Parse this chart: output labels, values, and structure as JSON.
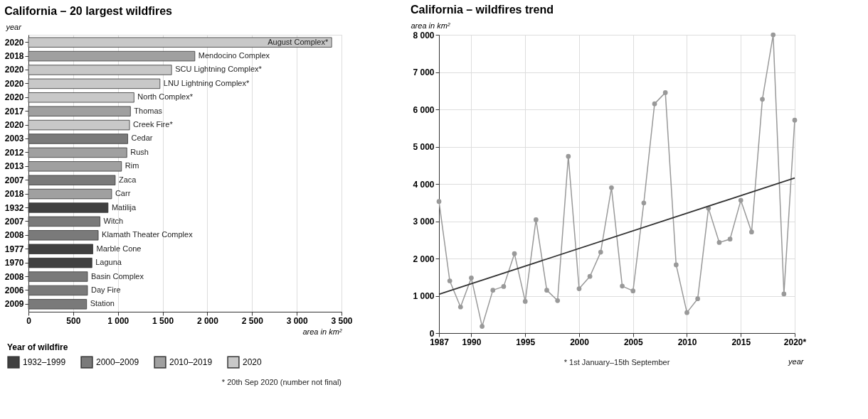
{
  "chart_data": [
    {
      "type": "bar",
      "orientation": "horizontal",
      "title": "California – 20 largest wildfires",
      "xlabel": "area in km²",
      "ylabel": "year",
      "legend_title": "Year of wildfire",
      "legend": "bottom",
      "grid": "x",
      "categories": [
        "2020",
        "2018",
        "2020",
        "2020",
        "2020",
        "2017",
        "2020",
        "2003",
        "2012",
        "2013",
        "2007",
        "2018",
        "1932",
        "2007",
        "2008",
        "1977",
        "1970",
        "2008",
        "2006",
        "2009"
      ],
      "series": [
        {
          "name": "1932–1999",
          "color": "#404040",
          "values": [
            null,
            null,
            null,
            null,
            null,
            null,
            null,
            null,
            null,
            null,
            null,
            null,
            890,
            null,
            null,
            720,
            710,
            null,
            null,
            null
          ],
          "value_labels": [
            null,
            null,
            null,
            null,
            null,
            null,
            null,
            null,
            null,
            null,
            null,
            null,
            "Matilija",
            null,
            null,
            "Marble Cone",
            "Laguna",
            null,
            null,
            null
          ]
        },
        {
          "name": "2000–2009",
          "color": "#7a7a7a",
          "values": [
            null,
            null,
            null,
            null,
            null,
            null,
            null,
            1110,
            null,
            null,
            970,
            null,
            null,
            800,
            780,
            null,
            null,
            660,
            660,
            650
          ],
          "value_labels": [
            null,
            null,
            null,
            null,
            null,
            null,
            null,
            "Cedar",
            null,
            null,
            "Zaca",
            null,
            null,
            "Witch",
            "Klamath Theater Complex",
            null,
            null,
            "Basin Complex",
            "Day Fire",
            "Station"
          ]
        },
        {
          "name": "2010–2019",
          "color": "#a0a0a0",
          "values": [
            null,
            1860,
            null,
            null,
            null,
            1140,
            null,
            null,
            1100,
            1040,
            null,
            930,
            null,
            null,
            null,
            null,
            null,
            null,
            null,
            null
          ],
          "value_labels": [
            null,
            "Mendocino Complex",
            null,
            null,
            null,
            "Thomas",
            null,
            null,
            "Rush",
            "Rim",
            null,
            "Carr",
            null,
            null,
            null,
            null,
            null,
            null,
            null,
            null
          ]
        },
        {
          "name": "2020",
          "color": "#c8c8c8",
          "values": [
            3390,
            null,
            1600,
            1470,
            1180,
            null,
            1130,
            null,
            null,
            null,
            null,
            null,
            null,
            null,
            null,
            null,
            null,
            null,
            null,
            null
          ],
          "value_labels": [
            "August Complex*",
            null,
            "SCU Lightning Complex*",
            "LNU Lightning Complex*",
            "North Complex*",
            null,
            "Creek Fire*",
            null,
            null,
            null,
            null,
            null,
            null,
            null,
            null,
            null,
            null,
            null,
            null,
            null
          ]
        }
      ],
      "xlim": [
        0,
        3500
      ],
      "xticks": [
        0,
        500,
        {
          "value": 1000,
          "label": "1 000"
        },
        {
          "value": 1500,
          "label": "1 500"
        },
        {
          "value": 2000,
          "label": "2 000"
        },
        {
          "value": 2500,
          "label": "2 500"
        },
        {
          "value": 3000,
          "label": "3 000"
        },
        {
          "value": 3500,
          "label": "3 500"
        }
      ],
      "annotations": [
        "* 20th Sep 2020 (number not final)"
      ]
    },
    {
      "type": "line",
      "title": "California – wildfires trend",
      "ylabel": "area in km²",
      "xlabel": "year",
      "grid": true,
      "marker": "circle",
      "x": [
        1987,
        1988,
        1989,
        1990,
        1991,
        1992,
        1993,
        1994,
        1995,
        1996,
        1997,
        1998,
        1999,
        2000,
        2001,
        2002,
        2003,
        2004,
        2005,
        2006,
        2007,
        2008,
        2009,
        2010,
        2011,
        2012,
        2013,
        2014,
        2015,
        2016,
        2017,
        2018,
        2019,
        2020
      ],
      "series": [
        {
          "color": "#999999",
          "values": [
            3530,
            1400,
            700,
            1480,
            180,
            1150,
            1250,
            2130,
            850,
            3040,
            1150,
            870,
            4740,
            1190,
            1520,
            2170,
            3900,
            1260,
            1130,
            3490,
            6150,
            6450,
            1830,
            550,
            920,
            3350,
            2430,
            2520,
            3560,
            2710,
            6270,
            8000,
            1050,
            5710
          ]
        },
        {
          "type": "line",
          "x": [
            1987,
            2020
          ],
          "values": [
            1040,
            4160
          ],
          "color": "#333333",
          "marker": "none"
        }
      ],
      "xlim": [
        1987,
        2020
      ],
      "xticks": [
        1987,
        1990,
        1995,
        2000,
        2005,
        2010,
        2015,
        {
          "value": 2020,
          "label": "2020*"
        }
      ],
      "ylim": [
        0,
        8000
      ],
      "yticks": [
        0,
        {
          "value": 1000,
          "label": "1 000"
        },
        {
          "value": 2000,
          "label": "2 000"
        },
        {
          "value": 3000,
          "label": "3 000"
        },
        {
          "value": 4000,
          "label": "4 000"
        },
        {
          "value": 5000,
          "label": "5 000"
        },
        {
          "value": 6000,
          "label": "6 000"
        },
        {
          "value": 7000,
          "label": "7 000"
        },
        {
          "value": 8000,
          "label": "8 000"
        }
      ],
      "annotations": [
        "* 1st January–15th September"
      ]
    }
  ]
}
